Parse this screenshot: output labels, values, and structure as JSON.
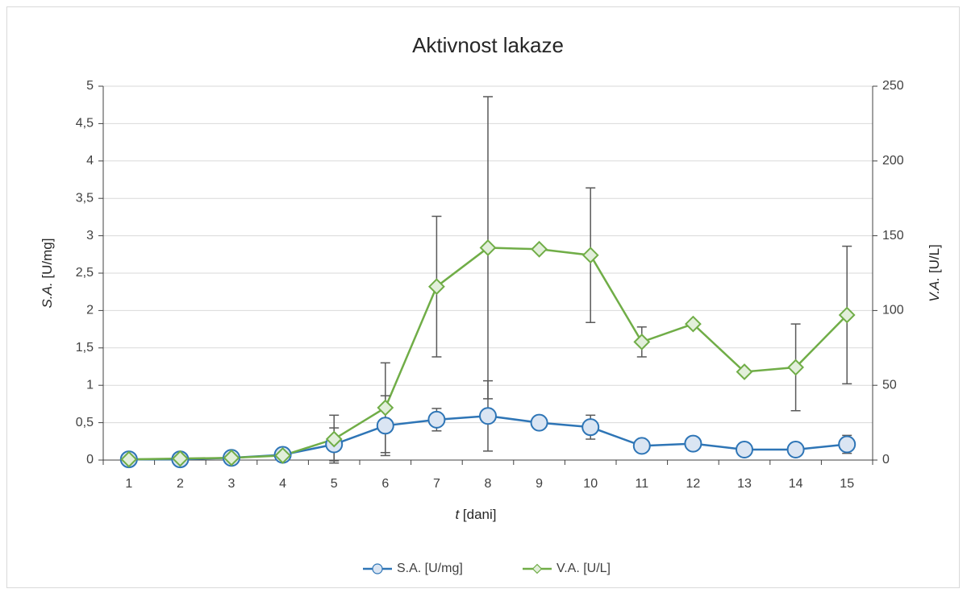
{
  "chart_data": {
    "type": "line",
    "title": "Aktivnost lakaze",
    "x_label": [
      "t",
      " [dani]"
    ],
    "y_label": [
      "S.A.",
      " [U/mg]"
    ],
    "y2_label": [
      "V.A.",
      " [U/L]"
    ],
    "categories": [
      "1",
      "2",
      "3",
      "4",
      "5",
      "6",
      "7",
      "8",
      "9",
      "10",
      "11",
      "12",
      "13",
      "14",
      "15"
    ],
    "ylim": [
      0,
      5
    ],
    "yticks": [
      0,
      {
        "value": 0.5,
        "label": "0,5"
      },
      1,
      {
        "value": 1.5,
        "label": "1,5"
      },
      2,
      {
        "value": 2.5,
        "label": "2,5"
      },
      3,
      {
        "value": 3.5,
        "label": "3,5"
      },
      4,
      {
        "value": 4.5,
        "label": "4,5"
      },
      5
    ],
    "y2lim": [
      0,
      250
    ],
    "y2ticks": [
      0,
      50,
      100,
      150,
      200,
      250
    ],
    "grid": true,
    "legend": "bottom",
    "series": [
      {
        "name": "S.A. [U/mg]",
        "color": "#2e75b6",
        "marker_fill": "#dae5f3",
        "marker": "circle",
        "values": [
          0.01,
          0.01,
          0.03,
          0.07,
          0.21,
          0.46,
          0.54,
          0.59,
          0.5,
          0.44,
          0.19,
          0.22,
          0.14,
          0.14,
          0.21
        ],
        "errors": [
          0,
          0,
          0,
          0,
          0.22,
          0.4,
          0.15,
          0.47,
          0,
          0.16,
          0,
          0,
          0,
          0,
          0.12
        ]
      },
      {
        "name": "V.A. [U/L]",
        "color": "#70ad47",
        "marker_fill": "#e2efda",
        "marker": "diamond",
        "axis": "y2",
        "values": [
          0.5,
          1,
          1.5,
          3,
          14,
          35,
          116,
          142,
          141,
          137,
          79,
          91,
          59,
          62,
          97
        ],
        "errors": [
          0,
          0,
          0,
          0,
          16,
          30,
          47,
          101,
          0,
          45,
          10,
          0,
          0,
          29,
          46
        ]
      }
    ]
  }
}
